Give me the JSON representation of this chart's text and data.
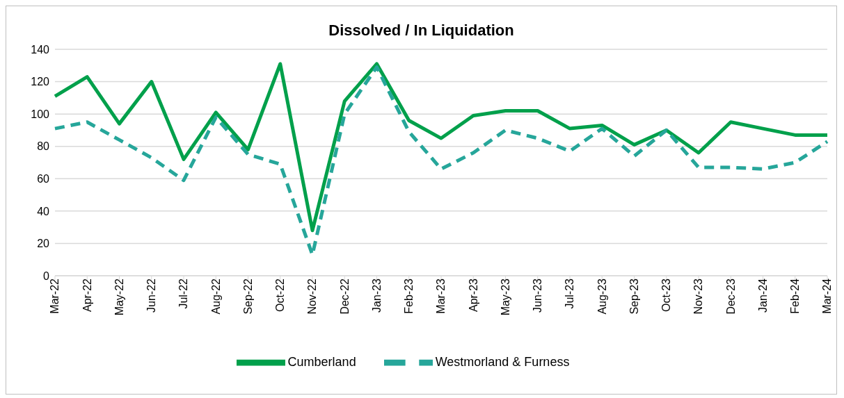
{
  "chart_data": {
    "type": "line",
    "title": "Dissolved / In Liquidation",
    "categories": [
      "Mar-22",
      "Apr-22",
      "May-22",
      "Jun-22",
      "Jul-22",
      "Aug-22",
      "Sep-22",
      "Oct-22",
      "Nov-22",
      "Dec-22",
      "Jan-23",
      "Feb-23",
      "Mar-23",
      "Apr-23",
      "May-23",
      "Jun-23",
      "Jul-23",
      "Aug-23",
      "Sep-23",
      "Oct-23",
      "Nov-23",
      "Dec-23",
      "Jan-24",
      "Feb-24",
      "Mar-24"
    ],
    "series": [
      {
        "name": "Cumberland",
        "color": "#00a04b",
        "line_style": "solid",
        "values": [
          111,
          123,
          94,
          120,
          72,
          101,
          78,
          131,
          28,
          108,
          131,
          96,
          85,
          99,
          102,
          102,
          91,
          93,
          81,
          90,
          76,
          95,
          91,
          87,
          87
        ]
      },
      {
        "name": "Westmorland & Furness",
        "color": "#26a69a",
        "line_style": "dashed",
        "values": [
          91,
          95,
          84,
          73,
          59,
          98,
          75,
          69,
          13,
          100,
          129,
          89,
          66,
          76,
          90,
          85,
          77,
          91,
          74,
          90,
          67,
          67,
          66,
          70,
          83
        ]
      }
    ],
    "ylim": [
      0,
      140
    ],
    "yticks": [
      0,
      20,
      40,
      60,
      80,
      100,
      120,
      140
    ],
    "grid": "y",
    "legend": "bottom",
    "marker": "none"
  }
}
